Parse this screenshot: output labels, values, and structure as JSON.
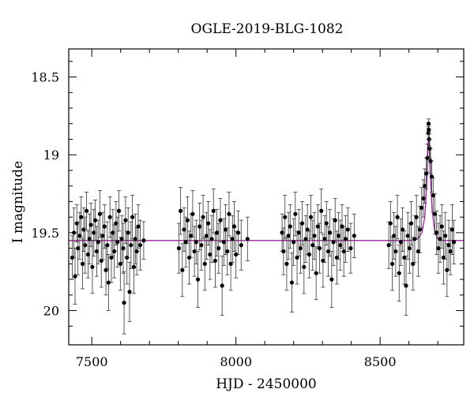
{
  "chart_data": {
    "type": "scatter",
    "title": "OGLE-2019-BLG-1082",
    "xlabel": "HJD - 2450000",
    "ylabel": "I magnitude",
    "xlim": [
      7420,
      8790
    ],
    "ylim": [
      20.22,
      18.32
    ],
    "y_inverted": true,
    "x_major_ticks": [
      7500,
      8000,
      8500
    ],
    "x_tick_labels": [
      "7500",
      "8000",
      "8500"
    ],
    "y_major_ticks": [
      18.5,
      19,
      19.5,
      20
    ],
    "y_tick_labels": [
      "18.5",
      "19",
      "19.5",
      "20"
    ],
    "grid": false,
    "legend": "none",
    "baseline_magnitude": 19.55,
    "model_color": "#a020a0",
    "point_color": "#000000",
    "series": [
      {
        "points": [
          {
            "x": 7432,
            "y": 19.66,
            "e": 0.14
          },
          {
            "x": 7438,
            "y": 19.5,
            "e": 0.16
          },
          {
            "x": 7442,
            "y": 19.78,
            "e": 0.18
          },
          {
            "x": 7448,
            "y": 19.44,
            "e": 0.12
          },
          {
            "x": 7452,
            "y": 19.6,
            "e": 0.17
          },
          {
            "x": 7458,
            "y": 19.52,
            "e": 0.15
          },
          {
            "x": 7463,
            "y": 19.4,
            "e": 0.13
          },
          {
            "x": 7468,
            "y": 19.7,
            "e": 0.16
          },
          {
            "x": 7472,
            "y": 19.48,
            "e": 0.14
          },
          {
            "x": 7477,
            "y": 19.58,
            "e": 0.18
          },
          {
            "x": 7482,
            "y": 19.36,
            "e": 0.12
          },
          {
            "x": 7487,
            "y": 19.64,
            "e": 0.15
          },
          {
            "x": 7492,
            "y": 19.54,
            "e": 0.16
          },
          {
            "x": 7497,
            "y": 19.45,
            "e": 0.14
          },
          {
            "x": 7502,
            "y": 19.72,
            "e": 0.17
          },
          {
            "x": 7507,
            "y": 19.5,
            "e": 0.15
          },
          {
            "x": 7512,
            "y": 19.42,
            "e": 0.13
          },
          {
            "x": 7517,
            "y": 19.62,
            "e": 0.16
          },
          {
            "x": 7522,
            "y": 19.56,
            "e": 0.14
          },
          {
            "x": 7528,
            "y": 19.38,
            "e": 0.15
          },
          {
            "x": 7533,
            "y": 19.68,
            "e": 0.17
          },
          {
            "x": 7538,
            "y": 19.52,
            "e": 0.15
          },
          {
            "x": 7544,
            "y": 19.46,
            "e": 0.14
          },
          {
            "x": 7549,
            "y": 19.74,
            "e": 0.16
          },
          {
            "x": 7554,
            "y": 19.58,
            "e": 0.15
          },
          {
            "x": 7558,
            "y": 19.82,
            "e": 0.18
          },
          {
            "x": 7563,
            "y": 19.4,
            "e": 0.13
          },
          {
            "x": 7568,
            "y": 19.66,
            "e": 0.16
          },
          {
            "x": 7573,
            "y": 19.5,
            "e": 0.15
          },
          {
            "x": 7578,
            "y": 19.62,
            "e": 0.17
          },
          {
            "x": 7584,
            "y": 19.44,
            "e": 0.14
          },
          {
            "x": 7589,
            "y": 19.56,
            "e": 0.16
          },
          {
            "x": 7594,
            "y": 19.36,
            "e": 0.13
          },
          {
            "x": 7599,
            "y": 19.7,
            "e": 0.17
          },
          {
            "x": 7604,
            "y": 19.54,
            "e": 0.15
          },
          {
            "x": 7609,
            "y": 19.6,
            "e": 0.16
          },
          {
            "x": 7612,
            "y": 19.95,
            "e": 0.2
          },
          {
            "x": 7617,
            "y": 19.42,
            "e": 0.15
          },
          {
            "x": 7622,
            "y": 19.66,
            "e": 0.17
          },
          {
            "x": 7626,
            "y": 19.5,
            "e": 0.16
          },
          {
            "x": 7631,
            "y": 19.88,
            "e": 0.19
          },
          {
            "x": 7636,
            "y": 19.58,
            "e": 0.15
          },
          {
            "x": 7641,
            "y": 19.4,
            "e": 0.14
          },
          {
            "x": 7646,
            "y": 19.72,
            "e": 0.17
          },
          {
            "x": 7651,
            "y": 19.54,
            "e": 0.16
          },
          {
            "x": 7656,
            "y": 19.62,
            "e": 0.15
          },
          {
            "x": 7661,
            "y": 19.46,
            "e": 0.14
          },
          {
            "x": 7668,
            "y": 19.58,
            "e": 0.16
          },
          {
            "x": 7680,
            "y": 19.55,
            "e": 0.12
          },
          {
            "x": 7802,
            "y": 19.6,
            "e": 0.16
          },
          {
            "x": 7808,
            "y": 19.36,
            "e": 0.15
          },
          {
            "x": 7814,
            "y": 19.74,
            "e": 0.17
          },
          {
            "x": 7820,
            "y": 19.48,
            "e": 0.14
          },
          {
            "x": 7826,
            "y": 19.56,
            "e": 0.16
          },
          {
            "x": 7832,
            "y": 19.42,
            "e": 0.15
          },
          {
            "x": 7838,
            "y": 19.66,
            "e": 0.17
          },
          {
            "x": 7844,
            "y": 19.52,
            "e": 0.14
          },
          {
            "x": 7850,
            "y": 19.38,
            "e": 0.15
          },
          {
            "x": 7856,
            "y": 19.62,
            "e": 0.16
          },
          {
            "x": 7862,
            "y": 19.56,
            "e": 0.14
          },
          {
            "x": 7868,
            "y": 19.8,
            "e": 0.18
          },
          {
            "x": 7874,
            "y": 19.46,
            "e": 0.15
          },
          {
            "x": 7880,
            "y": 19.58,
            "e": 0.16
          },
          {
            "x": 7886,
            "y": 19.4,
            "e": 0.14
          },
          {
            "x": 7892,
            "y": 19.7,
            "e": 0.17
          },
          {
            "x": 7898,
            "y": 19.52,
            "e": 0.15
          },
          {
            "x": 7904,
            "y": 19.44,
            "e": 0.14
          },
          {
            "x": 7910,
            "y": 19.64,
            "e": 0.16
          },
          {
            "x": 7916,
            "y": 19.54,
            "e": 0.15
          },
          {
            "x": 7922,
            "y": 19.36,
            "e": 0.14
          },
          {
            "x": 7928,
            "y": 19.68,
            "e": 0.17
          },
          {
            "x": 7934,
            "y": 19.5,
            "e": 0.15
          },
          {
            "x": 7940,
            "y": 19.6,
            "e": 0.16
          },
          {
            "x": 7946,
            "y": 19.42,
            "e": 0.14
          },
          {
            "x": 7952,
            "y": 19.84,
            "e": 0.19
          },
          {
            "x": 7958,
            "y": 19.56,
            "e": 0.15
          },
          {
            "x": 7964,
            "y": 19.48,
            "e": 0.16
          },
          {
            "x": 7970,
            "y": 19.62,
            "e": 0.15
          },
          {
            "x": 7976,
            "y": 19.38,
            "e": 0.14
          },
          {
            "x": 7982,
            "y": 19.7,
            "e": 0.17
          },
          {
            "x": 7988,
            "y": 19.54,
            "e": 0.15
          },
          {
            "x": 7994,
            "y": 19.46,
            "e": 0.16
          },
          {
            "x": 8000,
            "y": 19.64,
            "e": 0.15
          },
          {
            "x": 8008,
            "y": 19.5,
            "e": 0.14
          },
          {
            "x": 8018,
            "y": 19.58,
            "e": 0.16
          },
          {
            "x": 8040,
            "y": 19.54,
            "e": 0.14
          },
          {
            "x": 8160,
            "y": 19.5,
            "e": 0.12
          },
          {
            "x": 8165,
            "y": 19.62,
            "e": 0.15
          },
          {
            "x": 8170,
            "y": 19.4,
            "e": 0.14
          },
          {
            "x": 8176,
            "y": 19.7,
            "e": 0.17
          },
          {
            "x": 8182,
            "y": 19.52,
            "e": 0.15
          },
          {
            "x": 8188,
            "y": 19.46,
            "e": 0.14
          },
          {
            "x": 8194,
            "y": 19.82,
            "e": 0.19
          },
          {
            "x": 8200,
            "y": 19.56,
            "e": 0.15
          },
          {
            "x": 8206,
            "y": 19.38,
            "e": 0.14
          },
          {
            "x": 8212,
            "y": 19.66,
            "e": 0.17
          },
          {
            "x": 8218,
            "y": 19.5,
            "e": 0.15
          },
          {
            "x": 8224,
            "y": 19.6,
            "e": 0.16
          },
          {
            "x": 8230,
            "y": 19.44,
            "e": 0.14
          },
          {
            "x": 8236,
            "y": 19.72,
            "e": 0.17
          },
          {
            "x": 8242,
            "y": 19.54,
            "e": 0.15
          },
          {
            "x": 8248,
            "y": 19.48,
            "e": 0.16
          },
          {
            "x": 8254,
            "y": 19.64,
            "e": 0.15
          },
          {
            "x": 8260,
            "y": 19.4,
            "e": 0.14
          },
          {
            "x": 8266,
            "y": 19.58,
            "e": 0.16
          },
          {
            "x": 8272,
            "y": 19.52,
            "e": 0.15
          },
          {
            "x": 8278,
            "y": 19.76,
            "e": 0.17
          },
          {
            "x": 8284,
            "y": 19.46,
            "e": 0.14
          },
          {
            "x": 8290,
            "y": 19.6,
            "e": 0.16
          },
          {
            "x": 8296,
            "y": 19.36,
            "e": 0.14
          },
          {
            "x": 8302,
            "y": 19.68,
            "e": 0.17
          },
          {
            "x": 8308,
            "y": 19.54,
            "e": 0.15
          },
          {
            "x": 8314,
            "y": 19.44,
            "e": 0.14
          },
          {
            "x": 8320,
            "y": 19.62,
            "e": 0.16
          },
          {
            "x": 8326,
            "y": 19.5,
            "e": 0.15
          },
          {
            "x": 8332,
            "y": 19.8,
            "e": 0.18
          },
          {
            "x": 8338,
            "y": 19.56,
            "e": 0.15
          },
          {
            "x": 8344,
            "y": 19.42,
            "e": 0.14
          },
          {
            "x": 8350,
            "y": 19.66,
            "e": 0.17
          },
          {
            "x": 8356,
            "y": 19.52,
            "e": 0.15
          },
          {
            "x": 8362,
            "y": 19.58,
            "e": 0.16
          },
          {
            "x": 8368,
            "y": 19.46,
            "e": 0.14
          },
          {
            "x": 8374,
            "y": 19.62,
            "e": 0.16
          },
          {
            "x": 8380,
            "y": 19.54,
            "e": 0.15
          },
          {
            "x": 8388,
            "y": 19.48,
            "e": 0.14
          },
          {
            "x": 8398,
            "y": 19.6,
            "e": 0.16
          },
          {
            "x": 8410,
            "y": 19.52,
            "e": 0.14
          },
          {
            "x": 8530,
            "y": 19.58,
            "e": 0.15
          },
          {
            "x": 8536,
            "y": 19.44,
            "e": 0.14
          },
          {
            "x": 8542,
            "y": 19.7,
            "e": 0.17
          },
          {
            "x": 8548,
            "y": 19.52,
            "e": 0.15
          },
          {
            "x": 8554,
            "y": 19.62,
            "e": 0.16
          },
          {
            "x": 8560,
            "y": 19.4,
            "e": 0.14
          },
          {
            "x": 8566,
            "y": 19.76,
            "e": 0.18
          },
          {
            "x": 8572,
            "y": 19.56,
            "e": 0.15
          },
          {
            "x": 8578,
            "y": 19.48,
            "e": 0.14
          },
          {
            "x": 8584,
            "y": 19.66,
            "e": 0.17
          },
          {
            "x": 8590,
            "y": 19.84,
            "e": 0.19
          },
          {
            "x": 8596,
            "y": 19.52,
            "e": 0.15
          },
          {
            "x": 8602,
            "y": 19.6,
            "e": 0.16
          },
          {
            "x": 8608,
            "y": 19.44,
            "e": 0.14
          },
          {
            "x": 8614,
            "y": 19.7,
            "e": 0.17
          },
          {
            "x": 8620,
            "y": 19.54,
            "e": 0.15
          },
          {
            "x": 8626,
            "y": 19.4,
            "e": 0.14
          },
          {
            "x": 8632,
            "y": 19.62,
            "e": 0.16
          },
          {
            "x": 8638,
            "y": 19.48,
            "e": 0.15
          },
          {
            "x": 8644,
            "y": 19.34,
            "e": 0.13
          },
          {
            "x": 8650,
            "y": 19.28,
            "e": 0.12
          },
          {
            "x": 8655,
            "y": 19.2,
            "e": 0.11
          },
          {
            "x": 8660,
            "y": 19.12,
            "e": 0.1
          },
          {
            "x": 8664,
            "y": 19.02,
            "e": 0.09
          },
          {
            "x": 8667,
            "y": 18.86,
            "e": 0.04
          },
          {
            "x": 8668,
            "y": 18.8,
            "e": 0.03
          },
          {
            "x": 8669,
            "y": 18.84,
            "e": 0.03
          },
          {
            "x": 8670,
            "y": 18.9,
            "e": 0.04
          },
          {
            "x": 8672,
            "y": 18.96,
            "e": 0.06
          },
          {
            "x": 8675,
            "y": 19.04,
            "e": 0.08
          },
          {
            "x": 8679,
            "y": 19.14,
            "e": 0.1
          },
          {
            "x": 8684,
            "y": 19.26,
            "e": 0.11
          },
          {
            "x": 8690,
            "y": 19.38,
            "e": 0.13
          },
          {
            "x": 8696,
            "y": 19.5,
            "e": 0.14
          },
          {
            "x": 8702,
            "y": 19.6,
            "e": 0.16
          },
          {
            "x": 8708,
            "y": 19.54,
            "e": 0.15
          },
          {
            "x": 8714,
            "y": 19.46,
            "e": 0.14
          },
          {
            "x": 8720,
            "y": 19.66,
            "e": 0.17
          },
          {
            "x": 8726,
            "y": 19.52,
            "e": 0.15
          },
          {
            "x": 8732,
            "y": 19.74,
            "e": 0.17
          },
          {
            "x": 8738,
            "y": 19.58,
            "e": 0.16
          },
          {
            "x": 8744,
            "y": 19.62,
            "e": 0.15
          },
          {
            "x": 8750,
            "y": 19.48,
            "e": 0.16
          },
          {
            "x": 8756,
            "y": 19.56,
            "e": 0.14
          }
        ]
      }
    ],
    "model_curve": {
      "x": [
        7420,
        8600,
        8630,
        8645,
        8655,
        8662,
        8666,
        8668,
        8670,
        8674,
        8680,
        8690,
        8700,
        8715,
        8740,
        8790
      ],
      "y": [
        19.55,
        19.55,
        19.54,
        19.5,
        19.4,
        19.18,
        18.95,
        18.88,
        18.95,
        19.12,
        19.35,
        19.5,
        19.54,
        19.55,
        19.55,
        19.55
      ]
    }
  }
}
